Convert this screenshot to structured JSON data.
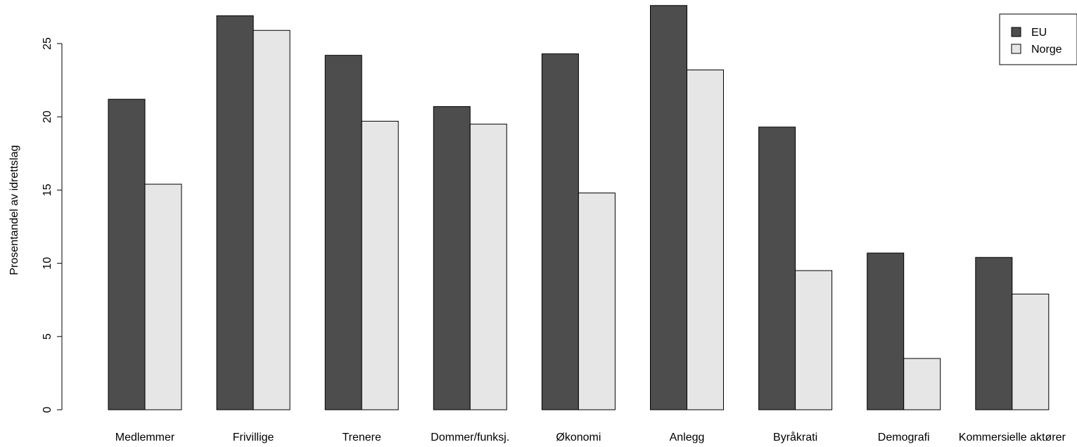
{
  "chart_data": {
    "type": "bar",
    "title": "",
    "xlabel": "",
    "ylabel": "Prosentandel av idrettslag",
    "ylim": [
      0,
      27.5
    ],
    "yticks": [
      0,
      5,
      10,
      15,
      20,
      25
    ],
    "categories": [
      "Medlemmer",
      "Frivillige",
      "Trenere",
      "Dommer/funksj.",
      "Økonomi",
      "Anlegg",
      "Byråkrati",
      "Demografi",
      "Kommersielle aktører"
    ],
    "series": [
      {
        "name": "EU",
        "color": "#4d4d4d",
        "values": [
          21.2,
          26.9,
          24.2,
          20.7,
          24.3,
          27.6,
          19.3,
          10.7,
          10.4
        ]
      },
      {
        "name": "Norge",
        "color": "#e6e6e6",
        "values": [
          15.4,
          25.9,
          19.7,
          19.5,
          14.8,
          23.2,
          9.5,
          3.5,
          7.9
        ]
      }
    ],
    "legend_position": "top-right",
    "grid": false
  }
}
